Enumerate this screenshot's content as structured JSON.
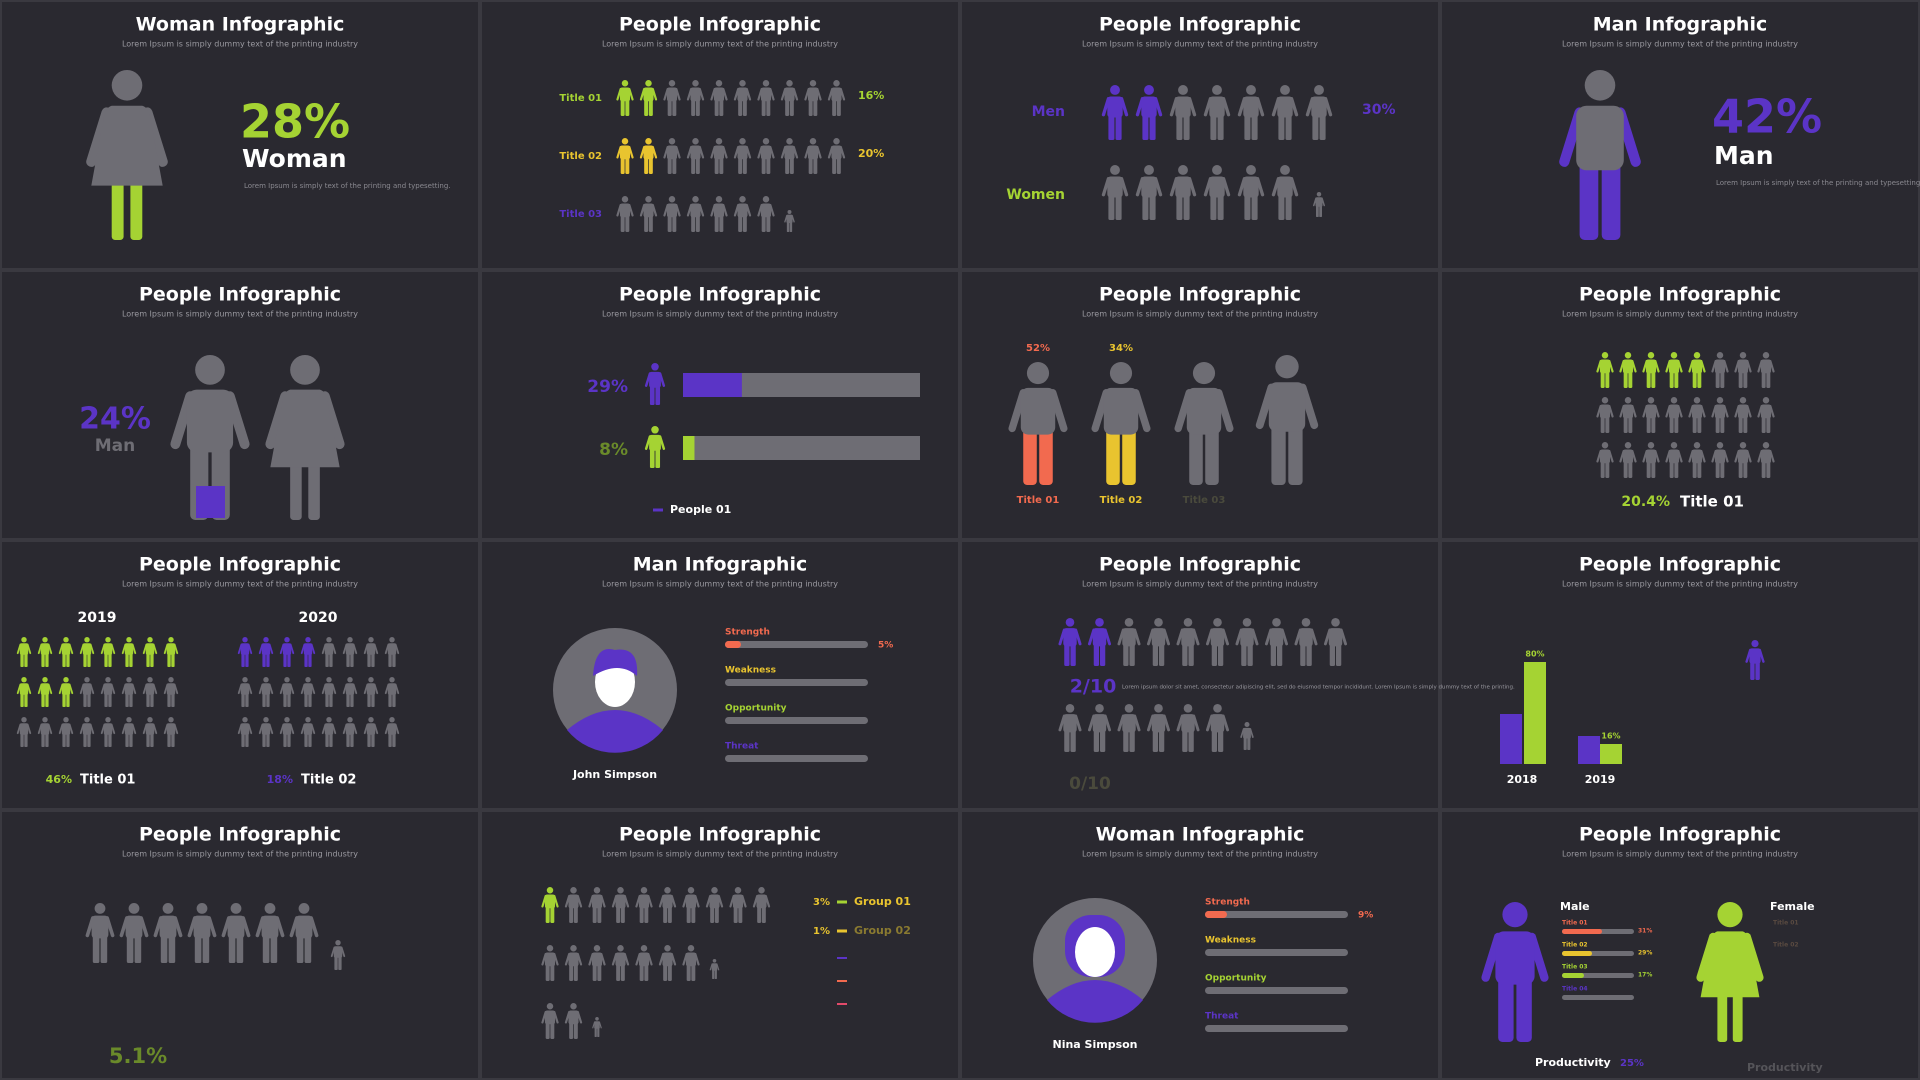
{
  "tiles": [
    {
      "title": "Woman Infographic",
      "subtitle": "Lorem Ipsum is simply dummy text of the printing industry",
      "percent": "28%",
      "label": "Woman",
      "note": "Lorem Ipsum is simply text of the printing and typesetting."
    },
    {
      "title": "People Infographic",
      "subtitle": "Lorem Ipsum is simply dummy text of the printing industry",
      "rows": [
        {
          "label": "Title 01",
          "value": "16%"
        },
        {
          "label": "Title 02",
          "value": "20%"
        },
        {
          "label": "Title 03"
        }
      ]
    },
    {
      "title": "People Infographic",
      "subtitle": "Lorem Ipsum is simply dummy text of the printing industry",
      "men": "Men",
      "men_value": "30%",
      "women": "Women"
    },
    {
      "title": "Man Infographic",
      "subtitle": "Lorem Ipsum is simply dummy text of the printing industry",
      "percent": "42%",
      "label": "Man",
      "note": "Lorem Ipsum is simply text of the printing and typesetting."
    },
    {
      "title": "People Infographic",
      "subtitle": "Lorem Ipsum is simply dummy text of the printing industry",
      "percent": "24%",
      "label": "Man"
    },
    {
      "title": "People Infographic",
      "subtitle": "Lorem Ipsum is simply dummy text of the printing industry",
      "rows": [
        "29%",
        "8%"
      ],
      "legend": "People 01"
    },
    {
      "title": "People Infographic",
      "subtitle": "Lorem Ipsum is simply dummy text of the printing industry",
      "percents": [
        "52%",
        "34%"
      ],
      "labels": [
        "Title 01",
        "Title 02",
        "Title 03"
      ]
    },
    {
      "title": "People Infographic",
      "subtitle": "Lorem Ipsum is simply dummy text of the printing industry",
      "percent": "20.4%",
      "label": "Title 01"
    },
    {
      "title": "People Infographic",
      "subtitle": "Lorem Ipsum is simply dummy text of the printing industry",
      "years": [
        "2019",
        "2020"
      ],
      "groups": [
        {
          "value": "46%",
          "label": "Title 01"
        },
        {
          "value": "18%",
          "label": "Title 02"
        }
      ]
    },
    {
      "title": "Man Infographic",
      "subtitle": "Lorem Ipsum is simply dummy text of the printing industry",
      "name": "John Simpson",
      "skills": [
        "Strength",
        "Weakness",
        "Opportunity",
        "Threat"
      ],
      "strength_value": "5%"
    },
    {
      "title": "People Infographic",
      "subtitle": "Lorem Ipsum is simply dummy text of the printing industry",
      "ratio": "2/10",
      "text": "Lorem ipsum dolor sit amet, consectetur adipiscing elit, sed do eiusmod tempor incididunt. Lorem Ipsum is simply dummy text of the printing.",
      "ratio2": "0/10"
    },
    {
      "title": "People Infographic",
      "subtitle": "Lorem Ipsum is simply dummy text of the printing industry",
      "top_values": [
        "80%",
        "16%"
      ],
      "years": [
        "2018",
        "2019"
      ]
    },
    {
      "title": "People Infographic",
      "subtitle": "Lorem Ipsum is simply dummy text of the printing industry",
      "percent": "5.1%"
    },
    {
      "title": "People Infographic",
      "subtitle": "Lorem Ipsum is simply dummy text of the printing industry",
      "groups": [
        {
          "value": "3%",
          "label": "Group 01"
        },
        {
          "value": "1%",
          "label": "Group 02"
        }
      ]
    },
    {
      "title": "Woman Infographic",
      "subtitle": "Lorem Ipsum is simply dummy text of the printing industry",
      "name": "Nina Simpson",
      "skills": [
        "Strength",
        "Weakness",
        "Opportunity",
        "Threat"
      ],
      "strength_value": "9%"
    },
    {
      "title": "People Infographic",
      "subtitle": "Lorem Ipsum is simply dummy text of the printing industry",
      "male": "Male",
      "female": "Female",
      "male_rows": [
        {
          "label": "Title 01",
          "value": "31%"
        },
        {
          "label": "Title 02",
          "value": "29%"
        },
        {
          "label": "Title 03",
          "value": "17%"
        },
        {
          "label": "Title 04"
        }
      ],
      "female_rows": [
        "Title 01",
        "Title 02"
      ],
      "productivity": "Productivity",
      "productivity_value": "25%",
      "productivity2": "Productivity"
    }
  ]
}
